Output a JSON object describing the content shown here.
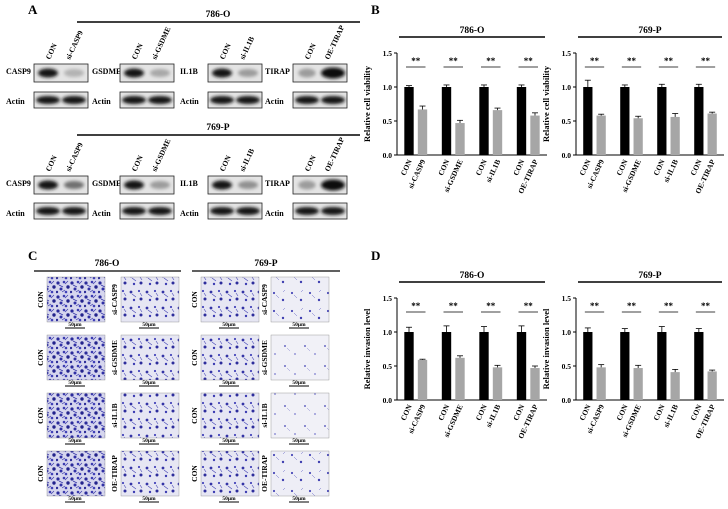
{
  "panels": {
    "A": "A",
    "B": "B",
    "C": "C",
    "D": "D"
  },
  "panel_a": {
    "group_786": "786-O",
    "group_769": "769-P",
    "blots": [
      {
        "lanes": [
          "CON",
          "si-CASP9"
        ],
        "label": "CASP9",
        "ratio_786": 0.25,
        "ratio_769": 0.55
      },
      {
        "lanes": [
          "CON",
          "si-GSDME"
        ],
        "label": "GSDME",
        "ratio_786": 0.3,
        "ratio_769": 0.35
      },
      {
        "lanes": [
          "CON",
          "si-IL1B"
        ],
        "label": "IL1B",
        "ratio_786": 0.35,
        "ratio_769": 0.4
      },
      {
        "lanes": [
          "CON",
          "OE-TIRAP"
        ],
        "label": "TIRAP",
        "ratio_786": 2.0,
        "ratio_769": 2.0
      }
    ],
    "loading": "Actin"
  },
  "panel_c": {
    "group_786": "786-O",
    "group_769": "769-P",
    "rows": [
      {
        "con": "CON",
        "treat": "si-CASP9"
      },
      {
        "con": "CON",
        "treat": "si-GSDME"
      },
      {
        "con": "CON",
        "treat": "si-IL1B"
      },
      {
        "con": "CON",
        "treat": "OE-TIRAP"
      }
    ],
    "scale": "50μm"
  },
  "sig": "**",
  "chart_data": [
    {
      "type": "bar",
      "panel": "B",
      "title": "786-O",
      "ylabel": "Relative cell viability",
      "ylim": [
        0,
        1.5
      ],
      "yticks": [
        "0.0",
        "0.5",
        "1.0",
        "1.5"
      ],
      "categories": [
        "CON",
        "si-CASP9",
        "CON",
        "si-GSDME",
        "CON",
        "si-IL1B",
        "CON",
        "OE-TIRAP"
      ],
      "values": [
        1.0,
        0.67,
        1.0,
        0.47,
        1.0,
        0.66,
        1.0,
        0.58
      ],
      "errors": [
        0.02,
        0.05,
        0.03,
        0.04,
        0.03,
        0.03,
        0.03,
        0.04
      ],
      "colors": [
        "#000000",
        "#a6a6a6",
        "#000000",
        "#a6a6a6",
        "#000000",
        "#a6a6a6",
        "#000000",
        "#a6a6a6"
      ]
    },
    {
      "type": "bar",
      "panel": "B",
      "title": "769-P",
      "ylabel": "Relative cell viability",
      "ylim": [
        0,
        1.5
      ],
      "yticks": [
        "0.0",
        "0.5",
        "1.0",
        "1.5"
      ],
      "categories": [
        "CON",
        "si-CASP9",
        "CON",
        "si-GSDME",
        "CON",
        "si-IL1B",
        "CON",
        "OE-TIRAP"
      ],
      "values": [
        1.0,
        0.58,
        1.0,
        0.54,
        1.0,
        0.56,
        1.0,
        0.61
      ],
      "errors": [
        0.1,
        0.02,
        0.03,
        0.03,
        0.04,
        0.05,
        0.04,
        0.02
      ],
      "colors": [
        "#000000",
        "#a6a6a6",
        "#000000",
        "#a6a6a6",
        "#000000",
        "#a6a6a6",
        "#000000",
        "#a6a6a6"
      ]
    },
    {
      "type": "bar",
      "panel": "D",
      "title": "786-O",
      "ylabel": "Relative invasion level",
      "ylim": [
        0,
        1.5
      ],
      "yticks": [
        "0.0",
        "0.5",
        "1.0",
        "1.5"
      ],
      "categories": [
        "CON",
        "si-CASP9",
        "CON",
        "si-GSDME",
        "CON",
        "si-IL1B",
        "CON",
        "OE-TIRAP"
      ],
      "values": [
        1.0,
        0.59,
        1.0,
        0.62,
        1.0,
        0.48,
        1.0,
        0.47
      ],
      "errors": [
        0.07,
        0.01,
        0.09,
        0.03,
        0.08,
        0.03,
        0.09,
        0.03
      ],
      "colors": [
        "#000000",
        "#a6a6a6",
        "#000000",
        "#a6a6a6",
        "#000000",
        "#a6a6a6",
        "#000000",
        "#a6a6a6"
      ]
    },
    {
      "type": "bar",
      "panel": "D",
      "title": "769-P",
      "ylabel": "Relative invasion level",
      "ylim": [
        0,
        1.5
      ],
      "yticks": [
        "0.0",
        "0.5",
        "1.0",
        "1.5"
      ],
      "categories": [
        "CON",
        "si-CASP9",
        "CON",
        "si-GSDME",
        "CON",
        "si-IL1B",
        "CON",
        "OE-TIRAP"
      ],
      "values": [
        1.0,
        0.48,
        1.0,
        0.47,
        1.0,
        0.41,
        1.0,
        0.42
      ],
      "errors": [
        0.06,
        0.04,
        0.05,
        0.04,
        0.08,
        0.04,
        0.05,
        0.02
      ],
      "colors": [
        "#000000",
        "#a6a6a6",
        "#000000",
        "#a6a6a6",
        "#000000",
        "#a6a6a6",
        "#000000",
        "#a6a6a6"
      ]
    }
  ]
}
